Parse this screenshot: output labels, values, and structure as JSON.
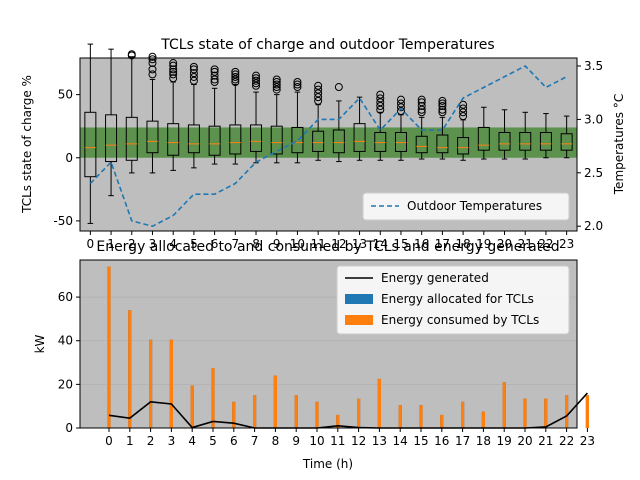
{
  "chart_data": [
    {
      "type": "box",
      "title": "TCLs state of charge and outdoor Temperatures",
      "xlabel": "",
      "ylabel": "TCLs state of charge %",
      "y2label": "Temperatures °C",
      "categories": [
        "0",
        "1",
        "2",
        "3",
        "4",
        "5",
        "6",
        "7",
        "8",
        "9",
        "10",
        "11",
        "12",
        "13",
        "14",
        "15",
        "16",
        "17",
        "18",
        "19",
        "20",
        "21",
        "22",
        "23"
      ],
      "ylim": [
        -58,
        79
      ],
      "yticks": [
        -50,
        0,
        50
      ],
      "y2lim": [
        1.955,
        3.575
      ],
      "y2ticks": [
        2.0,
        2.5,
        3.0,
        3.5
      ],
      "y2tick_labels": [
        "2.0",
        "2.5",
        "3.0",
        "3.5"
      ],
      "band": {
        "low": 0,
        "high": 24,
        "color": "#4b8b3b"
      },
      "boxes": [
        {
          "whislo": -52,
          "q1": -15,
          "med": 8,
          "q3": 36,
          "whishi": 90,
          "fliers": []
        },
        {
          "whislo": -30,
          "q1": -3,
          "med": 10,
          "q3": 34,
          "whishi": 86,
          "fliers": []
        },
        {
          "whislo": -12,
          "q1": -2,
          "med": 11,
          "q3": 32,
          "whishi": 80,
          "fliers": [
            81,
            82
          ]
        },
        {
          "whislo": -12,
          "q1": 4,
          "med": 13,
          "q3": 29,
          "whishi": 62,
          "fliers": [
            66,
            70,
            75,
            78,
            80
          ]
        },
        {
          "whislo": -10,
          "q1": 2,
          "med": 12,
          "q3": 27,
          "whishi": 60,
          "fliers": [
            63,
            66,
            68,
            70,
            73,
            75
          ]
        },
        {
          "whislo": -8,
          "q1": 4,
          "med": 11,
          "q3": 26,
          "whishi": 58,
          "fliers": [
            61,
            64,
            67,
            70,
            72
          ]
        },
        {
          "whislo": -5,
          "q1": 2,
          "med": 11,
          "q3": 25,
          "whishi": 55,
          "fliers": [
            60,
            62,
            65,
            68,
            70
          ]
        },
        {
          "whislo": -5,
          "q1": 3,
          "med": 12,
          "q3": 26,
          "whishi": 58,
          "fliers": [
            60,
            62,
            64,
            66,
            68
          ]
        },
        {
          "whislo": -4,
          "q1": 5,
          "med": 13,
          "q3": 26,
          "whishi": 52,
          "fliers": [
            57,
            59,
            61,
            63,
            65
          ]
        },
        {
          "whislo": -4,
          "q1": 3,
          "med": 12,
          "q3": 25,
          "whishi": 50,
          "fliers": [
            54,
            56,
            58,
            60,
            62
          ]
        },
        {
          "whislo": -4,
          "q1": 4,
          "med": 12,
          "q3": 24,
          "whishi": 52,
          "fliers": [
            56,
            58,
            60
          ]
        },
        {
          "whislo": -2,
          "q1": 5,
          "med": 12,
          "q3": 21,
          "whishi": 42,
          "fliers": [
            45,
            48,
            51,
            54,
            57
          ]
        },
        {
          "whislo": -3,
          "q1": 4,
          "med": 12,
          "q3": 22,
          "whishi": 45,
          "fliers": [
            56
          ]
        },
        {
          "whislo": -2,
          "q1": 5,
          "med": 13,
          "q3": 27,
          "whishi": 48,
          "fliers": []
        },
        {
          "whislo": -2,
          "q1": 5,
          "med": 12,
          "q3": 20,
          "whishi": 36,
          "fliers": [
            38,
            41,
            44,
            47,
            50
          ]
        },
        {
          "whislo": -2,
          "q1": 5,
          "med": 12,
          "q3": 20,
          "whishi": 34,
          "fliers": [
            37,
            40,
            43,
            46
          ]
        },
        {
          "whislo": -1,
          "q1": 4,
          "med": 9,
          "q3": 17,
          "whishi": 32,
          "fliers": [
            36,
            38,
            41,
            44,
            46
          ]
        },
        {
          "whislo": -1,
          "q1": 4,
          "med": 8,
          "q3": 18,
          "whishi": 32,
          "fliers": [
            36,
            38,
            41,
            43,
            45
          ]
        },
        {
          "whislo": -2,
          "q1": 3,
          "med": 8,
          "q3": 16,
          "whishi": 30,
          "fliers": [
            33,
            36,
            39,
            42
          ]
        },
        {
          "whislo": -1,
          "q1": 6,
          "med": 10,
          "q3": 24,
          "whishi": 40,
          "fliers": []
        },
        {
          "whislo": -1,
          "q1": 6,
          "med": 11,
          "q3": 20,
          "whishi": 38,
          "fliers": []
        },
        {
          "whislo": -1,
          "q1": 6,
          "med": 11,
          "q3": 20,
          "whishi": 36,
          "fliers": []
        },
        {
          "whislo": 0,
          "q1": 6,
          "med": 11,
          "q3": 20,
          "whishi": 35,
          "fliers": []
        },
        {
          "whislo": 0,
          "q1": 6,
          "med": 11,
          "q3": 19,
          "whishi": 33,
          "fliers": []
        }
      ],
      "temperature_series": {
        "name": "Outdoor Temperatures",
        "values": [
          2.4,
          2.6,
          2.05,
          2.0,
          2.1,
          2.3,
          2.3,
          2.4,
          2.6,
          2.7,
          2.8,
          3.0,
          3.0,
          3.2,
          2.9,
          3.1,
          2.9,
          2.9,
          3.2,
          3.3,
          3.4,
          3.5,
          3.3,
          3.4
        ],
        "color": "#1f77b4"
      },
      "legend_placement": "lower-right",
      "grid": false
    },
    {
      "type": "bar",
      "title": "Energy allocated to and consumed by TCLs and energy generated",
      "xlabel": "Time (h)",
      "ylabel": "kW",
      "categories": [
        "0",
        "1",
        "2",
        "3",
        "4",
        "5",
        "6",
        "7",
        "8",
        "9",
        "10",
        "11",
        "12",
        "13",
        "14",
        "15",
        "16",
        "17",
        "18",
        "19",
        "20",
        "21",
        "22",
        "23"
      ],
      "ylim": [
        0,
        77
      ],
      "yticks": [
        0,
        20,
        40,
        60
      ],
      "series": [
        {
          "name": "Energy generated",
          "type": "line",
          "color": "#000000",
          "values": [
            5.8,
            4.5,
            12.0,
            11.0,
            0.2,
            3.0,
            2.2,
            0,
            0,
            0,
            0,
            1.0,
            0.2,
            0,
            0,
            0,
            0,
            0,
            0,
            0,
            0,
            0.5,
            5.5,
            16.0
          ]
        },
        {
          "name": "Energy allocated for TCLs",
          "type": "bar",
          "color": "#1f77b4",
          "values": [
            74,
            54,
            40.5,
            40.5,
            19.5,
            27.5,
            12,
            15,
            24,
            15,
            12,
            6,
            13.5,
            22.5,
            10.5,
            10.5,
            6,
            12,
            7.5,
            21,
            13.5,
            13.5,
            15,
            15
          ]
        },
        {
          "name": "Energy consumed by TCLs",
          "type": "bar",
          "color": "#ff7f0e",
          "values": [
            74,
            54,
            40.5,
            40.5,
            19.5,
            27.5,
            12,
            15,
            24,
            15,
            12,
            6,
            13.5,
            22.5,
            10.5,
            10.5,
            6,
            12,
            7.5,
            21,
            13.5,
            13.5,
            15,
            15
          ]
        }
      ],
      "legend_placement": "upper-right",
      "grid": "y"
    }
  ]
}
